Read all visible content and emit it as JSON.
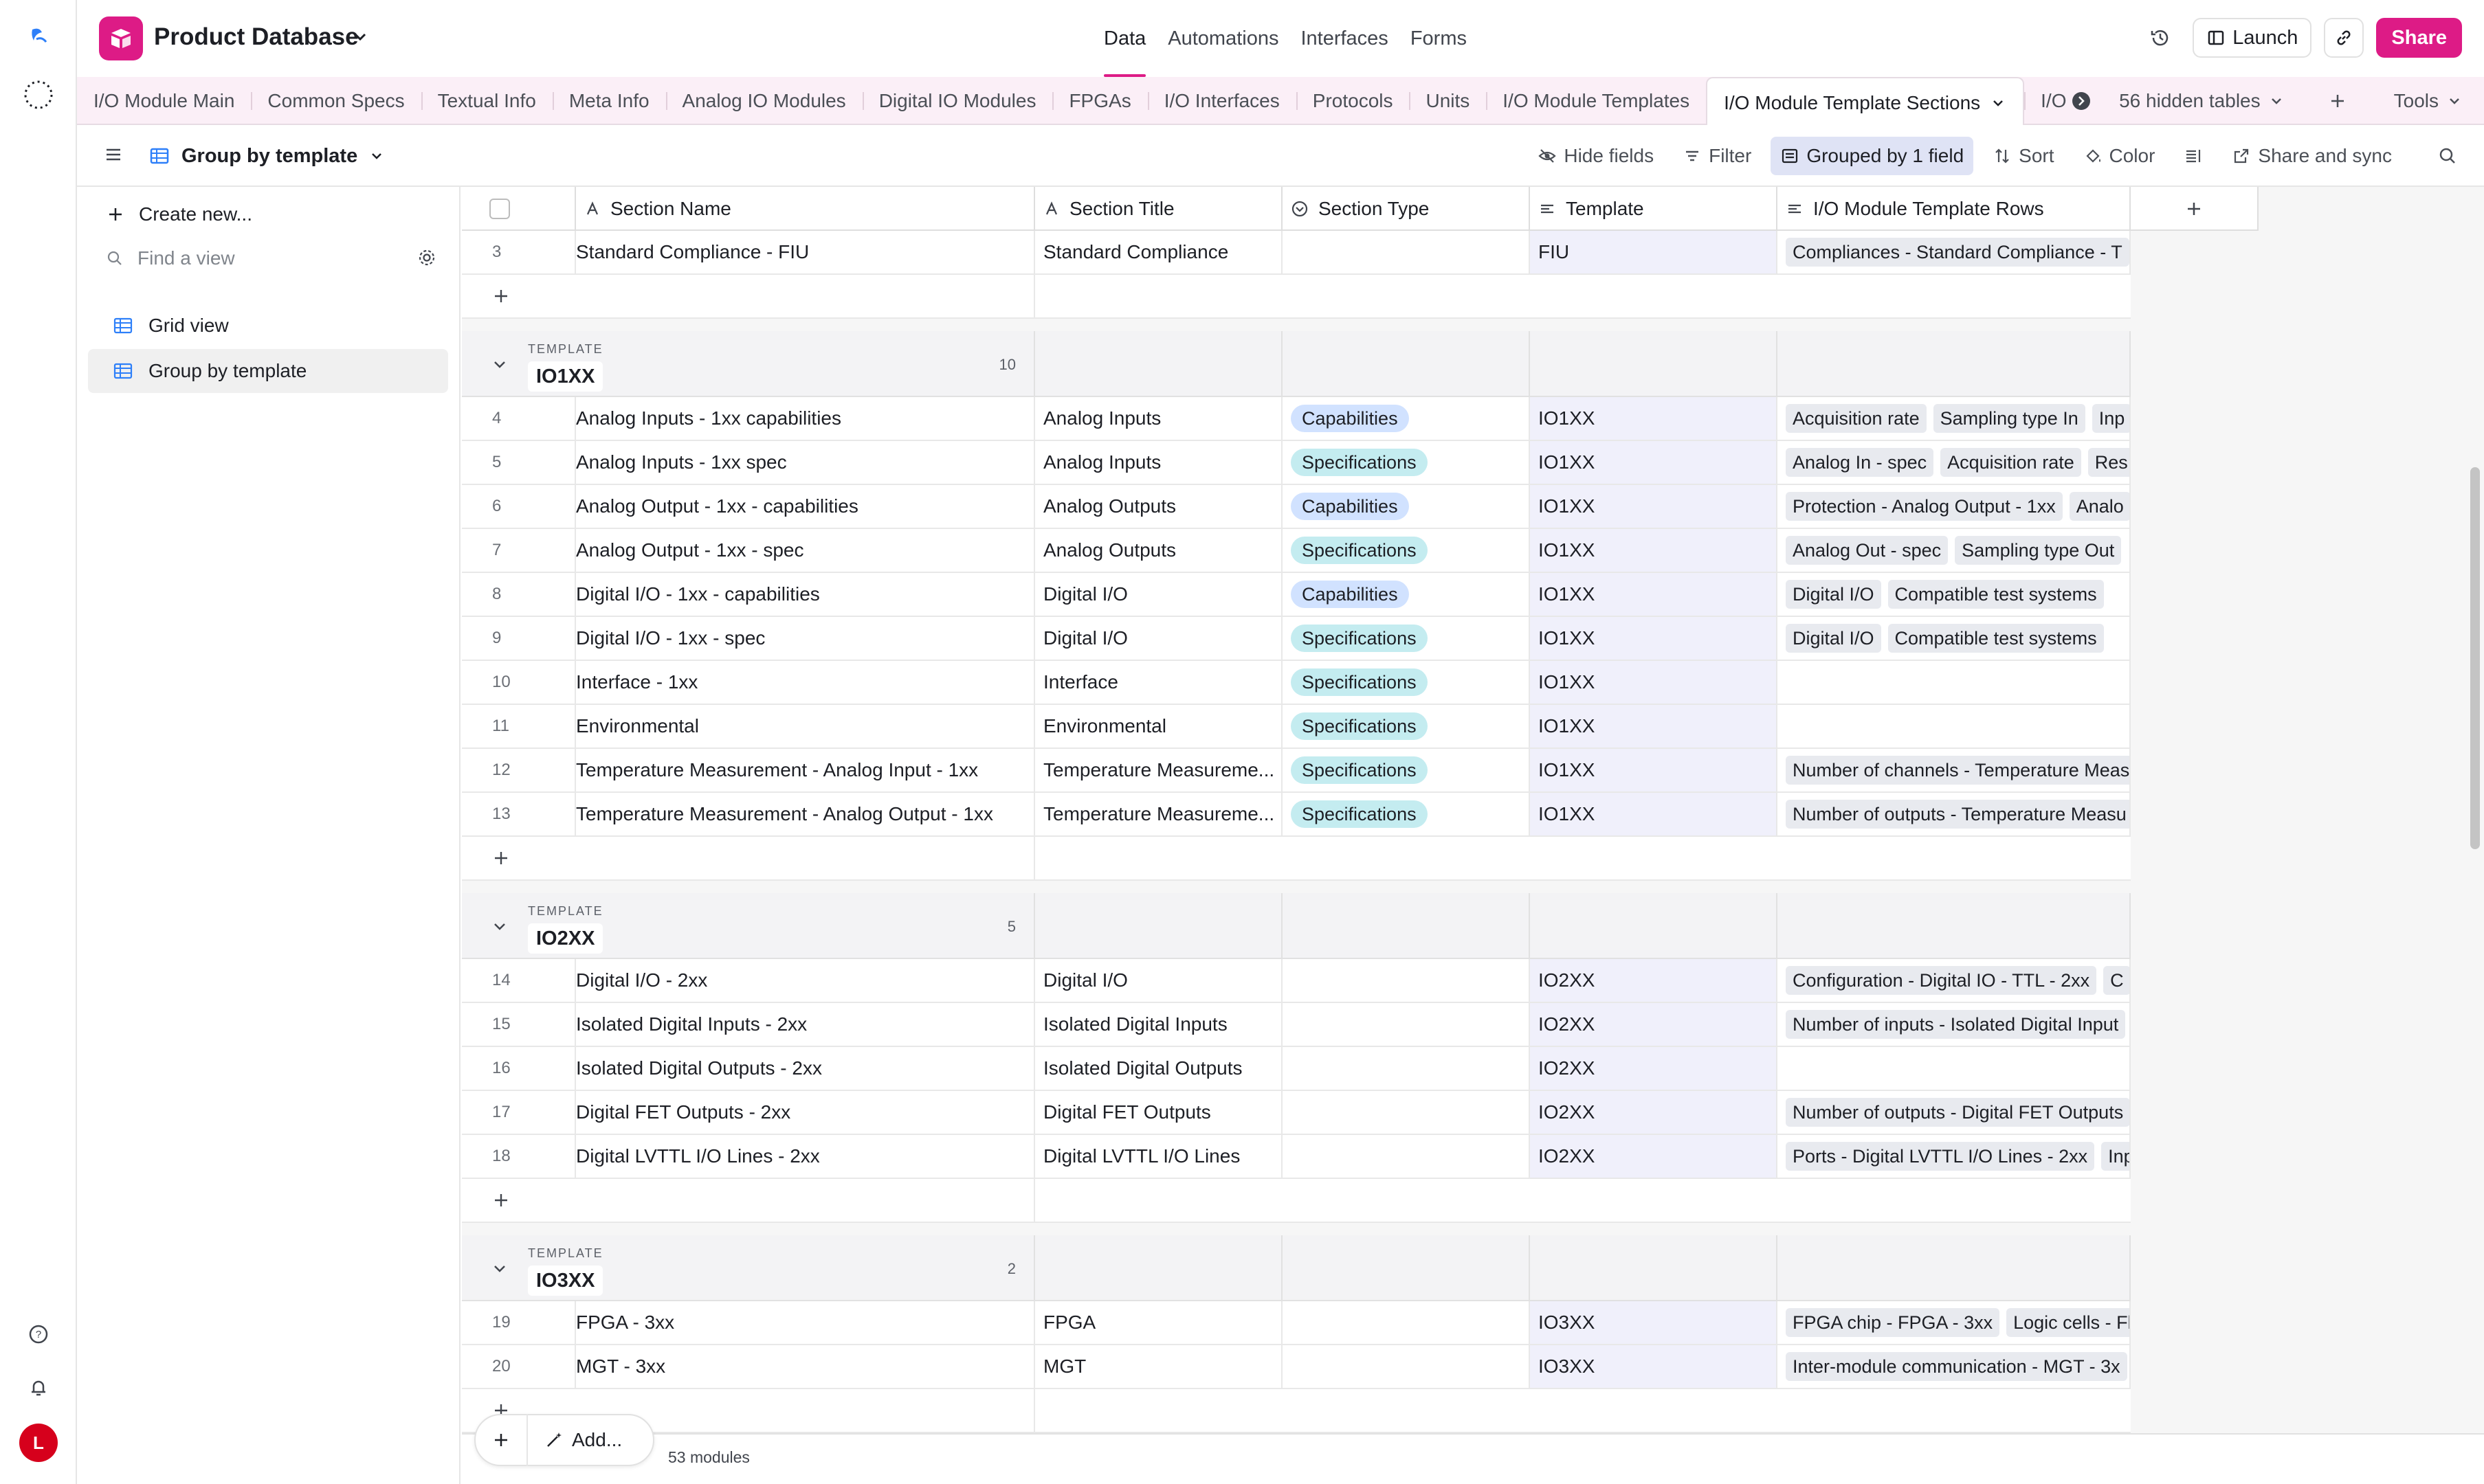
{
  "colors": {
    "accent": "#dd1b86",
    "capabilities": "#d1e2ff",
    "specifications": "#c4ecf0",
    "avatar": "#d6001c"
  },
  "base": {
    "name": "Product Database"
  },
  "nav": [
    "Data",
    "Automations",
    "Interfaces",
    "Forms"
  ],
  "actions": {
    "launch": "Launch",
    "share": "Share"
  },
  "user": {
    "initial": "L"
  },
  "tabs": [
    "I/O Module Main",
    "Common Specs",
    "Textual Info",
    "Meta Info",
    "Analog IO Modules",
    "Digital IO Modules",
    "FPGAs",
    "I/O Interfaces",
    "Protocols",
    "Units",
    "I/O Module Templates"
  ],
  "active_tab": "I/O Module Template Sections",
  "cut_tab": "I/O",
  "hidden_tables": "56 hidden tables",
  "tools": "Tools",
  "view": {
    "name": "Group by template"
  },
  "toolbar": {
    "hide_fields": "Hide fields",
    "filter": "Filter",
    "grouped": "Grouped by 1 field",
    "sort": "Sort",
    "color": "Color",
    "share_sync": "Share and sync"
  },
  "sidebar": {
    "create": "Create new...",
    "find_placeholder": "Find a view",
    "views": [
      "Grid view",
      "Group by template"
    ]
  },
  "columns": [
    "Section Name",
    "Section Title",
    "Section Type",
    "Template",
    "I/O Module Template Rows"
  ],
  "group_label": "TEMPLATE",
  "top_row": {
    "num": "3",
    "name": "Standard Compliance - FIU",
    "title": "Standard Compliance",
    "type": "",
    "template": "FIU",
    "rows": [
      "Compliances - Standard Compliance - T"
    ]
  },
  "groups": [
    {
      "name": "IO1XX",
      "count": "10",
      "rows": [
        {
          "num": "4",
          "name": "Analog Inputs - 1xx capabilities",
          "title": "Analog Inputs",
          "type": "Capabilities",
          "template": "IO1XX",
          "rows": [
            "Acquisition rate",
            "Sampling type In",
            "Inp"
          ]
        },
        {
          "num": "5",
          "name": "Analog Inputs - 1xx spec",
          "title": "Analog Inputs",
          "type": "Specifications",
          "template": "IO1XX",
          "rows": [
            "Analog In - spec",
            "Acquisition rate",
            "Res"
          ]
        },
        {
          "num": "6",
          "name": "Analog Output - 1xx - capabilities",
          "title": "Analog Outputs",
          "type": "Capabilities",
          "template": "IO1XX",
          "rows": [
            "Protection - Analog Output - 1xx",
            "Analo"
          ]
        },
        {
          "num": "7",
          "name": "Analog Output - 1xx - spec",
          "title": "Analog Outputs",
          "type": "Specifications",
          "template": "IO1XX",
          "rows": [
            "Analog Out - spec",
            "Sampling type Out"
          ]
        },
        {
          "num": "8",
          "name": "Digital I/O - 1xx - capabilities",
          "title": "Digital I/O",
          "type": "Capabilities",
          "template": "IO1XX",
          "rows": [
            "Digital I/O",
            "Compatible test systems"
          ]
        },
        {
          "num": "9",
          "name": "Digital I/O - 1xx - spec",
          "title": "Digital I/O",
          "type": "Specifications",
          "template": "IO1XX",
          "rows": [
            "Digital I/O",
            "Compatible test systems"
          ]
        },
        {
          "num": "10",
          "name": "Interface - 1xx",
          "title": "Interface",
          "type": "Specifications",
          "template": "IO1XX",
          "rows": []
        },
        {
          "num": "11",
          "name": "Environmental",
          "title": "Environmental",
          "type": "Specifications",
          "template": "IO1XX",
          "rows": []
        },
        {
          "num": "12",
          "name": "Temperature Measurement - Analog Input - 1xx",
          "title": "Temperature Measureme...",
          "type": "Specifications",
          "template": "IO1XX",
          "rows": [
            "Number of channels - Temperature Meas"
          ]
        },
        {
          "num": "13",
          "name": "Temperature Measurement - Analog Output - 1xx",
          "title": "Temperature Measureme...",
          "type": "Specifications",
          "template": "IO1XX",
          "rows": [
            "Number of outputs - Temperature Measu"
          ]
        }
      ]
    },
    {
      "name": "IO2XX",
      "count": "5",
      "rows": [
        {
          "num": "14",
          "name": "Digital I/O - 2xx",
          "title": "Digital I/O",
          "type": "",
          "template": "IO2XX",
          "rows": [
            "Configuration - Digital IO - TTL - 2xx",
            "C"
          ]
        },
        {
          "num": "15",
          "name": "Isolated Digital Inputs - 2xx",
          "title": "Isolated Digital Inputs",
          "type": "",
          "template": "IO2XX",
          "rows": [
            "Number of inputs - Isolated Digital Input"
          ]
        },
        {
          "num": "16",
          "name": "Isolated Digital Outputs - 2xx",
          "title": "Isolated Digital Outputs",
          "type": "",
          "template": "IO2XX",
          "rows": []
        },
        {
          "num": "17",
          "name": "Digital FET Outputs - 2xx",
          "title": "Digital FET Outputs",
          "type": "",
          "template": "IO2XX",
          "rows": [
            "Number of outputs - Digital FET Outputs"
          ]
        },
        {
          "num": "18",
          "name": "Digital LVTTL I/O Lines - 2xx",
          "title": "Digital LVTTL I/O Lines",
          "type": "",
          "template": "IO2XX",
          "rows": [
            "Ports - Digital LVTTL I/O Lines - 2xx",
            "Inp"
          ]
        }
      ]
    },
    {
      "name": "IO3XX",
      "count": "2",
      "rows": [
        {
          "num": "19",
          "name": "FPGA - 3xx",
          "title": "FPGA",
          "type": "",
          "template": "IO3XX",
          "rows": [
            "FPGA chip - FPGA - 3xx",
            "Logic cells - Fl"
          ]
        },
        {
          "num": "20",
          "name": "MGT - 3xx",
          "title": "MGT",
          "type": "",
          "template": "IO3XX",
          "rows": [
            "Inter-module communication - MGT - 3x"
          ]
        }
      ]
    }
  ],
  "footer": {
    "add": "Add...",
    "records": "53 modules"
  }
}
